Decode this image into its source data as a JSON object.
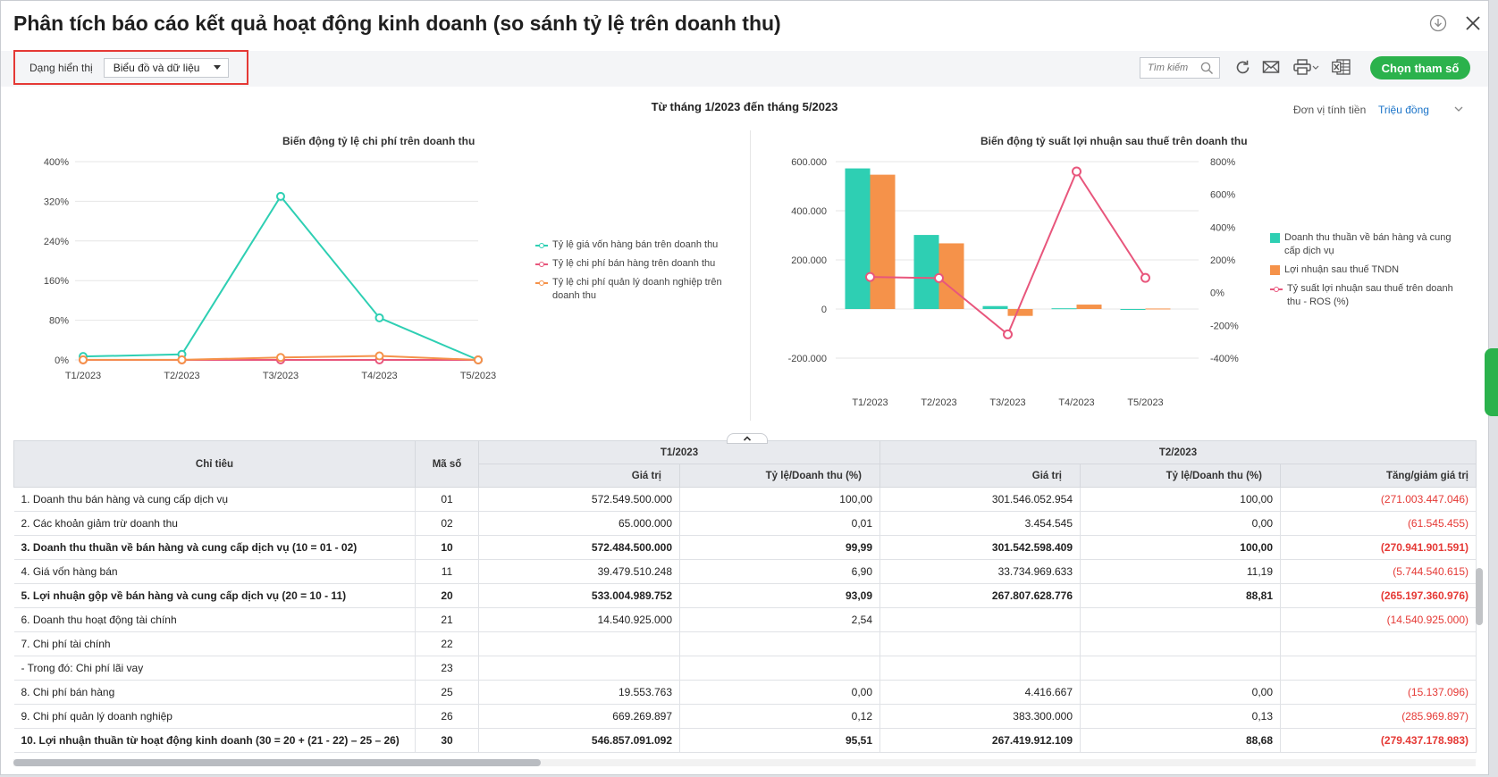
{
  "title": "Phân tích báo cáo kết quả hoạt động kinh doanh (so sánh tỷ lệ trên doanh thu)",
  "toolbar": {
    "view_label": "Dạng hiển thị",
    "view_value": "Biểu đồ và dữ liệu",
    "search_placeholder": "Tìm kiếm",
    "params_button": "Chọn tham số"
  },
  "period": "Từ tháng 1/2023 đến tháng 5/2023",
  "unit_label": "Đơn vị tính tiền",
  "unit_value": "Triệu đồng",
  "colors": {
    "teal": "#2ecfb3",
    "orange": "#f5924a",
    "pink": "#e8567c",
    "green": "#2bb24c",
    "red": "#e53935",
    "link": "#1a73c8"
  },
  "chart_data": [
    {
      "type": "line",
      "title": "Biến động tỷ lệ chi phí trên doanh thu",
      "x": [
        "T1/2023",
        "T2/2023",
        "T3/2023",
        "T4/2023",
        "T5/2023"
      ],
      "y_ticks": [
        "0%",
        "80%",
        "160%",
        "240%",
        "320%",
        "400%"
      ],
      "ylim": [
        0,
        400
      ],
      "grid": true,
      "legend": "right",
      "series": [
        {
          "name": "Tỷ lệ giá vốn hàng bán trên doanh thu",
          "color": "#2ecfb3",
          "values": [
            6.9,
            11.19,
            330,
            85,
            0
          ]
        },
        {
          "name": "Tỷ lệ chi phí bán hàng trên doanh thu",
          "color": "#e8567c",
          "values": [
            0,
            0,
            0,
            0,
            0
          ]
        },
        {
          "name": "Tỷ lệ chi phí quản lý doanh nghiệp trên doanh thu",
          "color": "#f5924a",
          "values": [
            0.12,
            0.13,
            5,
            8,
            0
          ]
        }
      ]
    },
    {
      "type": "bar",
      "title": "Biến động tỷ suất lợi nhuận sau thuế trên doanh thu",
      "categories": [
        "T1/2023",
        "T2/2023",
        "T3/2023",
        "T4/2023",
        "T5/2023"
      ],
      "y_ticks": [
        "-200.000",
        "0",
        "200.000",
        "400.000",
        "600.000"
      ],
      "ylim": [
        -200000,
        600000
      ],
      "y2_ticks": [
        "-400%",
        "-200%",
        "0%",
        "200%",
        "400%",
        "600%",
        "800%"
      ],
      "y2lim": [
        -400,
        800
      ],
      "grid": true,
      "legend": "right",
      "series": [
        {
          "name": "Doanh thu thuần về bán hàng và cung cấp dịch vụ",
          "kind": "bar",
          "color": "#2ecfb3",
          "values": [
            572484,
            301542,
            12000,
            3000,
            0
          ]
        },
        {
          "name": "Lợi nhuận sau thuế TNDN",
          "kind": "bar",
          "color": "#f5924a",
          "values": [
            546857,
            267419,
            -28000,
            18000,
            2000
          ]
        },
        {
          "name": "Tỷ suất lợi nhuận sau thuế trên doanh thu - ROS (%)",
          "kind": "line",
          "axis": "right",
          "color": "#e8567c",
          "values": [
            95.51,
            88.68,
            -255,
            740,
            90
          ]
        }
      ]
    }
  ],
  "table": {
    "headers": {
      "indicator": "Chỉ tiêu",
      "code": "Mã số",
      "p1": "T1/2023",
      "p2": "T2/2023",
      "value": "Giá trị",
      "ratio": "Tỷ lệ/Doanh thu (%)",
      "change": "Tăng/giảm giá trị"
    },
    "rows": [
      {
        "name": "1. Doanh thu bán hàng và cung cấp dịch vụ",
        "code": "01",
        "v1": "572.549.500.000",
        "r1": "100,00",
        "v2": "301.546.052.954",
        "r2": "100,00",
        "chg": "(271.003.447.046)",
        "bold": false
      },
      {
        "name": "2. Các khoản giảm trừ doanh thu",
        "code": "02",
        "v1": "65.000.000",
        "r1": "0,01",
        "v2": "3.454.545",
        "r2": "0,00",
        "chg": "(61.545.455)",
        "bold": false
      },
      {
        "name": "3. Doanh thu thuần về bán hàng và cung cấp dịch vụ (10 = 01 - 02)",
        "code": "10",
        "v1": "572.484.500.000",
        "r1": "99,99",
        "v2": "301.542.598.409",
        "r2": "100,00",
        "chg": "(270.941.901.591)",
        "bold": true
      },
      {
        "name": "4. Giá vốn hàng bán",
        "code": "11",
        "v1": "39.479.510.248",
        "r1": "6,90",
        "v2": "33.734.969.633",
        "r2": "11,19",
        "chg": "(5.744.540.615)",
        "bold": false
      },
      {
        "name": "5. Lợi nhuận gộp về bán hàng và cung cấp dịch vụ (20 = 10 - 11)",
        "code": "20",
        "v1": "533.004.989.752",
        "r1": "93,09",
        "v2": "267.807.628.776",
        "r2": "88,81",
        "chg": "(265.197.360.976)",
        "bold": true
      },
      {
        "name": "6. Doanh thu hoạt động tài chính",
        "code": "21",
        "v1": "14.540.925.000",
        "r1": "2,54",
        "v2": "",
        "r2": "",
        "chg": "(14.540.925.000)",
        "bold": false
      },
      {
        "name": "7. Chi phí tài chính",
        "code": "22",
        "v1": "",
        "r1": "",
        "v2": "",
        "r2": "",
        "chg": "",
        "bold": false
      },
      {
        "name": "- Trong đó: Chi phí lãi vay",
        "code": "23",
        "v1": "",
        "r1": "",
        "v2": "",
        "r2": "",
        "chg": "",
        "bold": false
      },
      {
        "name": "8. Chi phí bán hàng",
        "code": "25",
        "v1": "19.553.763",
        "r1": "0,00",
        "v2": "4.416.667",
        "r2": "0,00",
        "chg": "(15.137.096)",
        "bold": false
      },
      {
        "name": "9. Chi phí quản lý doanh nghiệp",
        "code": "26",
        "v1": "669.269.897",
        "r1": "0,12",
        "v2": "383.300.000",
        "r2": "0,13",
        "chg": "(285.969.897)",
        "bold": false
      },
      {
        "name": "10. Lợi nhuận thuần từ hoạt động kinh doanh (30 = 20 + (21 - 22) – 25 – 26)",
        "code": "30",
        "v1": "546.857.091.092",
        "r1": "95,51",
        "v2": "267.419.912.109",
        "r2": "88,68",
        "chg": "(279.437.178.983)",
        "bold": true
      }
    ]
  }
}
